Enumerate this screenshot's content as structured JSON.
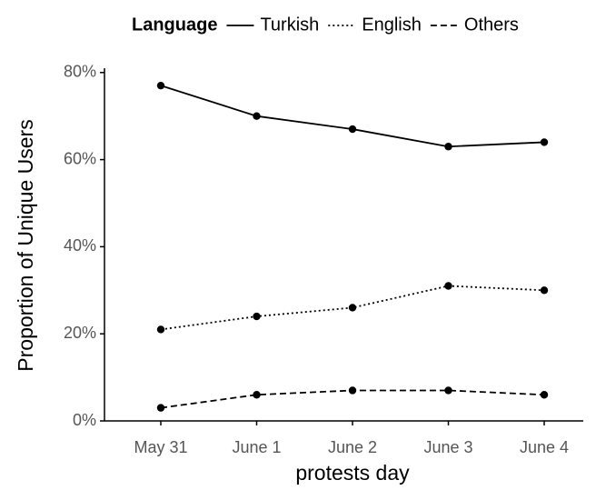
{
  "chart_data": {
    "type": "line",
    "legend_title": "Language",
    "legend_position": "top",
    "x_label": "protests day",
    "y_label": "Proportion of Unique Users",
    "categories": [
      "May 31",
      "June 1",
      "June 2",
      "June 3",
      "June 4"
    ],
    "series": [
      {
        "name": "Turkish",
        "color": "#000000",
        "dash": "solid",
        "values": [
          77,
          70,
          67,
          63,
          64
        ]
      },
      {
        "name": "English",
        "color": "#000000",
        "dash": "dotted",
        "values": [
          21,
          24,
          26,
          31,
          30
        ]
      },
      {
        "name": "Others",
        "color": "#000000",
        "dash": "dashed",
        "values": [
          3,
          6,
          7,
          7,
          6
        ]
      }
    ],
    "ylim": [
      0,
      81
    ],
    "yticks": [
      {
        "value": 0,
        "label": "0%"
      },
      {
        "value": 20,
        "label": "20%"
      },
      {
        "value": 40,
        "label": "40%"
      },
      {
        "value": 60,
        "label": "60%"
      },
      {
        "value": 80,
        "label": "80%"
      }
    ],
    "grid": false
  }
}
